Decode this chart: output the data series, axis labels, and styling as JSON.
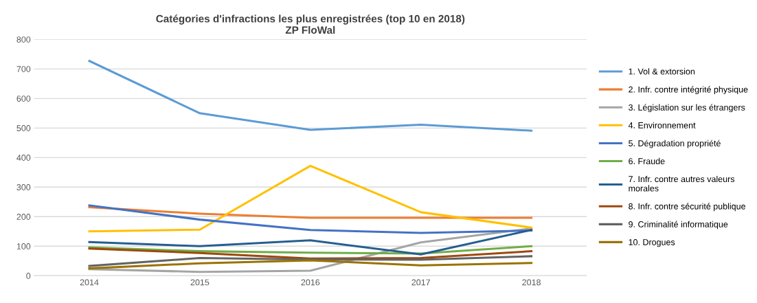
{
  "chart_data": {
    "type": "line",
    "title": "Catégories d'infractions les plus enregistrées (top 10 en 2018)",
    "subtitle": "ZP FloWal",
    "categories": [
      "2014",
      "2015",
      "2016",
      "2017",
      "2018"
    ],
    "series": [
      {
        "name": "1. Vol & extorsion",
        "color": "#5b9bd5",
        "values": [
          727,
          550,
          494,
          511,
          491
        ]
      },
      {
        "name": "2. Infr. contre intégrité physique",
        "color": "#ed7d31",
        "values": [
          232,
          210,
          196,
          196,
          196
        ]
      },
      {
        "name": "3. Législation sur les étrangers",
        "color": "#a5a5a5",
        "values": [
          22,
          13,
          17,
          113,
          160
        ]
      },
      {
        "name": "4. Environnement",
        "color": "#ffc000",
        "values": [
          150,
          156,
          372,
          215,
          163
        ]
      },
      {
        "name": "5. Dégradation propriété",
        "color": "#4472c4",
        "values": [
          238,
          190,
          155,
          145,
          153
        ]
      },
      {
        "name": "6. Fraude",
        "color": "#70ad47",
        "values": [
          96,
          83,
          78,
          75,
          100
        ]
      },
      {
        "name": "7. Infr. contre autres valeurs\nmorales",
        "color": "#255e91",
        "values": [
          114,
          100,
          120,
          72,
          155
        ]
      },
      {
        "name": "8. Infr. contre sécurité publique",
        "color": "#9e480e",
        "values": [
          92,
          77,
          58,
          60,
          83
        ]
      },
      {
        "name": "9. Criminalité informatique",
        "color": "#636363",
        "values": [
          33,
          60,
          55,
          54,
          66
        ]
      },
      {
        "name": "10. Drogues",
        "color": "#997300",
        "values": [
          25,
          42,
          52,
          35,
          43
        ]
      }
    ],
    "ylim": [
      0,
      800
    ],
    "yticks": [
      0,
      100,
      200,
      300,
      400,
      500,
      600,
      700,
      800
    ],
    "grid": "y",
    "legend": "right",
    "marker": "none",
    "line_style": "solid"
  }
}
